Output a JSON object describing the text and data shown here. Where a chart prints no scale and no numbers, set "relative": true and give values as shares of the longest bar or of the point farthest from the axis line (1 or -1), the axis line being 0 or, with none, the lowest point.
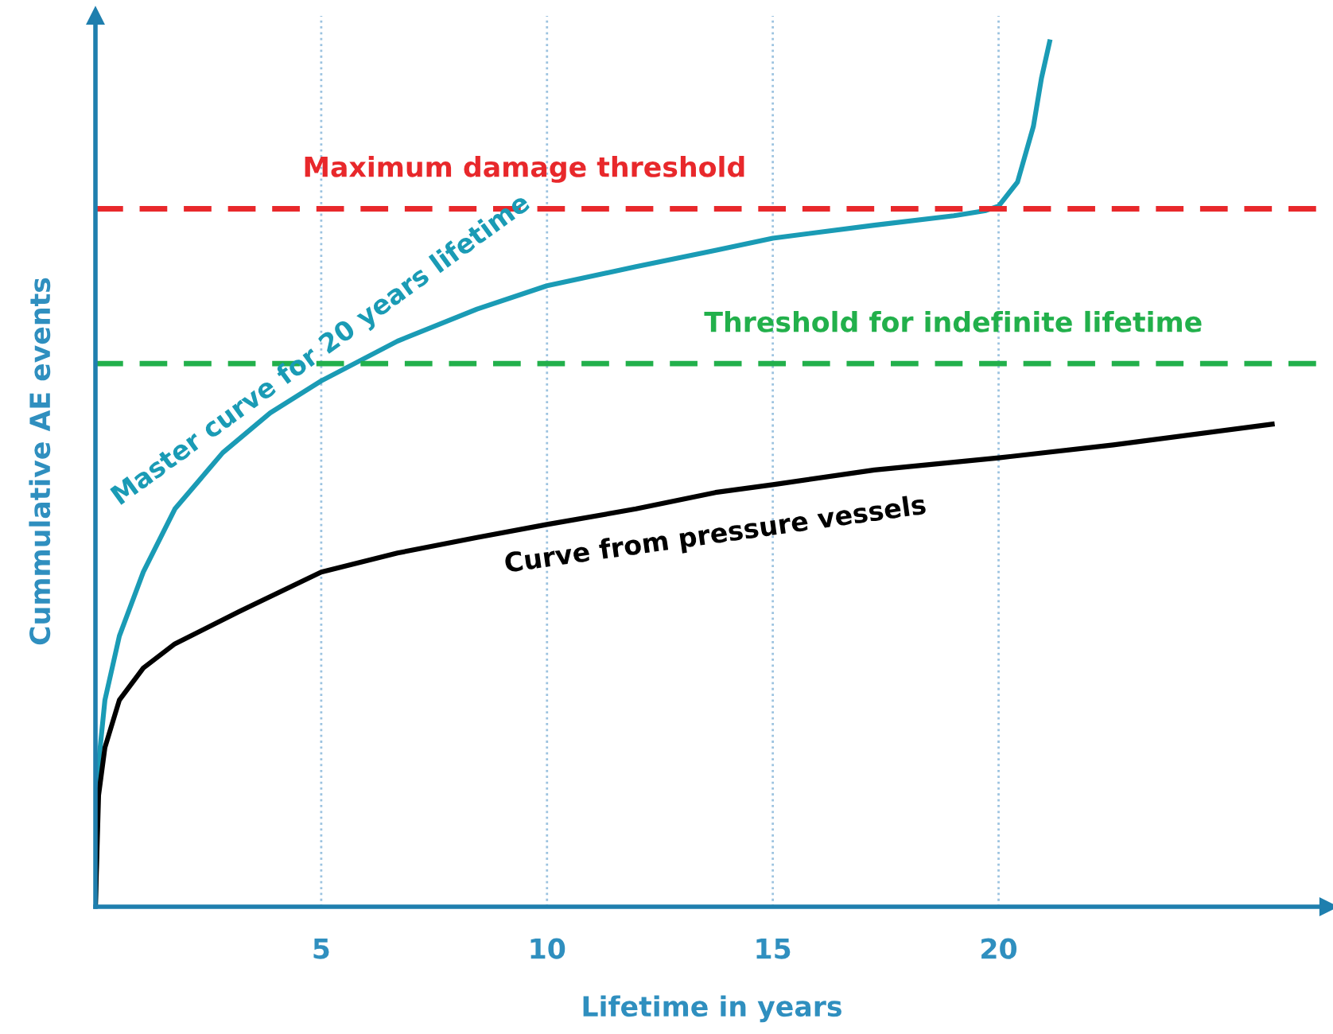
{
  "chart_data": {
    "type": "line",
    "relative": true,
    "xlabel": "Lifetime in years",
    "ylabel": "Cummulative AE events",
    "xlim": [
      0,
      27.3
    ],
    "xticks": [
      5,
      10,
      15,
      20
    ],
    "grid": "x",
    "legend": false,
    "marker": "none",
    "line_style": "solid",
    "series": [
      {
        "name": "Master curve for 20 years lifetime",
        "color": "#1a9bb5",
        "x": [
          0,
          0.07,
          0.21,
          0.53,
          1.06,
          1.76,
          2.82,
          3.87,
          5.0,
          6.69,
          8.45,
          10.0,
          11.97,
          13.73,
          15.0,
          17.25,
          19.01,
          19.72,
          20.0,
          20.42,
          20.77,
          20.95,
          21.13
        ],
        "values": [
          0,
          0.166,
          0.239,
          0.313,
          0.387,
          0.46,
          0.525,
          0.571,
          0.608,
          0.654,
          0.691,
          0.718,
          0.74,
          0.759,
          0.773,
          0.788,
          0.799,
          0.805,
          0.81,
          0.838,
          0.902,
          0.958,
          1.0
        ]
      },
      {
        "name": "Curve from pressure vessels",
        "color": "#000000",
        "x": [
          0,
          0.07,
          0.21,
          0.53,
          1.06,
          1.76,
          3.17,
          5.0,
          6.69,
          8.45,
          10.0,
          11.97,
          13.73,
          15.0,
          17.25,
          20.0,
          22.54,
          26.06
        ],
        "values": [
          0,
          0.129,
          0.184,
          0.239,
          0.276,
          0.304,
          0.341,
          0.387,
          0.409,
          0.427,
          0.442,
          0.46,
          0.479,
          0.488,
          0.505,
          0.519,
          0.534,
          0.558
        ]
      }
    ],
    "ref_lines": [
      {
        "axis": "y",
        "value": 0.807,
        "label": "Maximum damage threshold",
        "color": "#e8282b",
        "line_style": "dashed"
      },
      {
        "axis": "y",
        "value": 0.628,
        "label": "Threshold for indefinite lifetime",
        "color": "#22b04b",
        "line_style": "dashed"
      }
    ]
  }
}
